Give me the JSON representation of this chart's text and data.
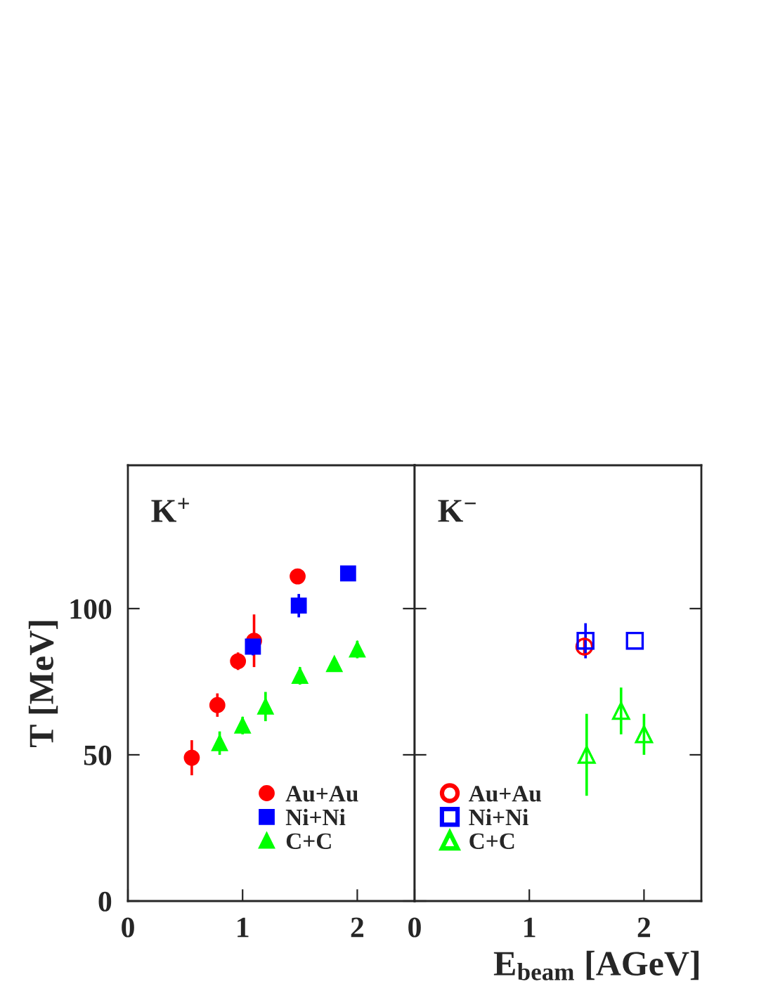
{
  "chart_data": [
    {
      "type": "scatter",
      "ylabel": "T [MeV]",
      "annotations": [
        "K$^{+}$"
      ],
      "xlim": [
        0,
        2.5
      ],
      "xticks": [
        0,
        1,
        2
      ],
      "ylim": [
        0,
        149
      ],
      "yticks": [
        0,
        50,
        100
      ],
      "legend": "bottom",
      "series": [
        {
          "name": "Au+Au",
          "color": "#ff0000",
          "marker": "circle",
          "x": [
            0.557,
            0.78,
            0.96,
            1.1,
            1.48
          ],
          "values": [
            49,
            67,
            82,
            89,
            111
          ],
          "errors": [
            6,
            4,
            3,
            9,
            1.5
          ]
        },
        {
          "name": "Ni+Ni",
          "color": "#0000ff",
          "marker": "square",
          "x": [
            1.09,
            1.49,
            1.92
          ],
          "values": [
            87,
            101,
            112
          ],
          "errors": [
            3,
            4,
            1.5
          ]
        },
        {
          "name": "C+C",
          "color": "#00ff00",
          "marker": "triangle",
          "x": [
            0.8,
            1.0,
            1.2,
            1.5,
            1.8,
            2.0
          ],
          "values": [
            54,
            60,
            66.5,
            77,
            81,
            86
          ],
          "errors": [
            4,
            3,
            5,
            3,
            2,
            3
          ]
        }
      ]
    },
    {
      "type": "scatter",
      "xlabel": "E$_{beam}$ [AGeV]",
      "annotations": [
        "K$^{−}$"
      ],
      "xlim": [
        0,
        2.5
      ],
      "xticks": [
        0,
        1,
        2
      ],
      "ylim": [
        0,
        149
      ],
      "yticks": [
        0,
        50,
        100
      ],
      "tick_labels": "x",
      "legend": "bottom left",
      "series": [
        {
          "name": "Au+Au",
          "color": "#ff0000",
          "marker": "circle",
          "x": [
            1.48
          ],
          "values": [
            87
          ],
          "errors": [
            3
          ]
        },
        {
          "name": "Ni+Ni",
          "color": "#0000ff",
          "marker": "square",
          "x": [
            1.49,
            1.92
          ],
          "values": [
            89,
            89
          ],
          "errors": [
            6,
            null
          ]
        },
        {
          "name": "C+C",
          "color": "#00ff00",
          "marker": "triangle",
          "x": [
            1.5,
            1.8,
            2.0
          ],
          "values": [
            50,
            65,
            57
          ],
          "errors": [
            14,
            8,
            7
          ]
        }
      ]
    }
  ]
}
